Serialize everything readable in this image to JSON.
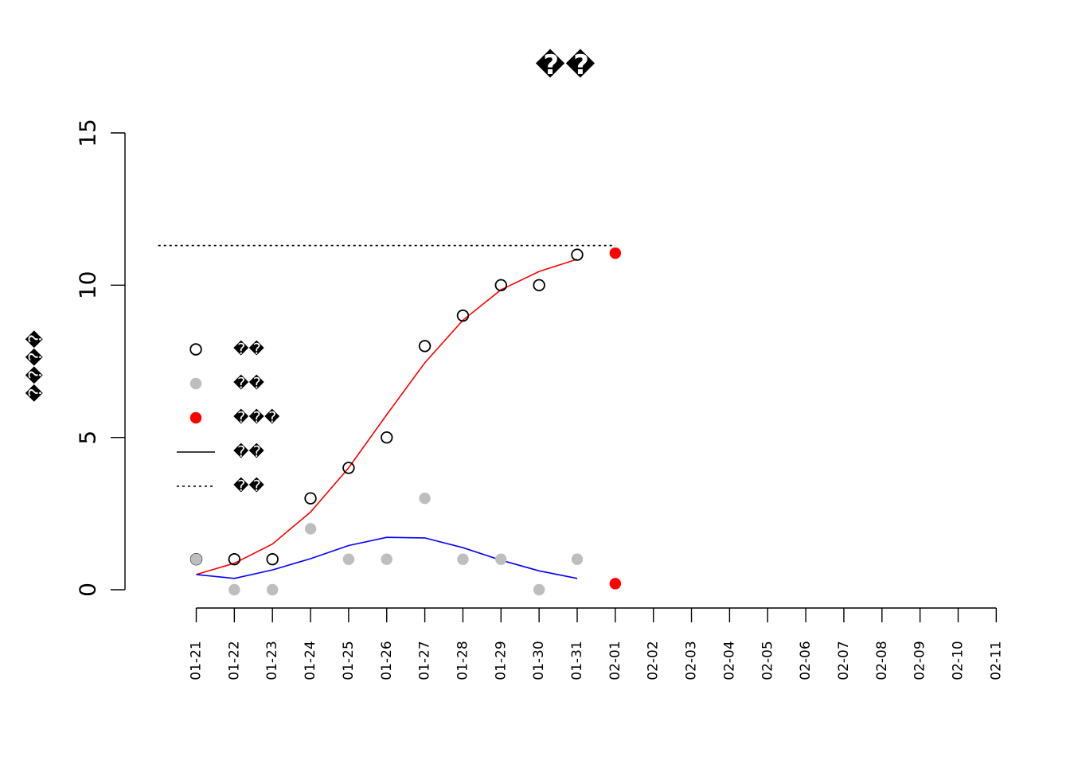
{
  "chart_data": {
    "type": "scatter",
    "title": "��",
    "xlabel": "",
    "ylabel": "����",
    "ylim": [
      0,
      15
    ],
    "yticks": [
      0,
      5,
      10,
      15
    ],
    "x": [
      "01-21",
      "01-22",
      "01-23",
      "01-24",
      "01-25",
      "01-26",
      "01-27",
      "01-28",
      "01-29",
      "01-30",
      "01-31",
      "02-01",
      "02-02",
      "02-03",
      "02-04",
      "02-05",
      "02-06",
      "02-07",
      "02-08",
      "02-09",
      "02-10",
      "02-11"
    ],
    "grid": false,
    "legend_position": "left",
    "series": [
      {
        "name": "��",
        "kind": "points-open",
        "color": "#000000",
        "x": [
          "01-21",
          "01-22",
          "01-23",
          "01-24",
          "01-25",
          "01-26",
          "01-27",
          "01-28",
          "01-29",
          "01-30",
          "01-31"
        ],
        "values": [
          1,
          1,
          1,
          3,
          4,
          5,
          8,
          9,
          10,
          10,
          11
        ]
      },
      {
        "name": "��",
        "kind": "points-filled",
        "color": "#bebebe",
        "x": [
          "01-21",
          "01-22",
          "01-23",
          "01-24",
          "01-25",
          "01-26",
          "01-27",
          "01-28",
          "01-29",
          "01-30",
          "01-31"
        ],
        "values": [
          1,
          0,
          0,
          2,
          1,
          1,
          3,
          1,
          1,
          0,
          1
        ]
      },
      {
        "name": "���",
        "kind": "points-filled",
        "color": "#ff0000",
        "x": [
          "02-01",
          "02-01"
        ],
        "values": [
          11.05,
          0.2
        ]
      },
      {
        "name": "��",
        "kind": "line",
        "color": "#ff0000",
        "x": [
          "01-21",
          "01-22",
          "01-23",
          "01-24",
          "01-25",
          "01-26",
          "01-27",
          "01-28",
          "01-29",
          "01-30",
          "01-31"
        ],
        "values": [
          0.5,
          0.87,
          1.5,
          2.55,
          4.0,
          5.75,
          7.45,
          8.85,
          9.85,
          10.45,
          10.85
        ]
      },
      {
        "name": "",
        "kind": "line",
        "color": "#0000ff",
        "x": [
          "01-21",
          "01-22",
          "01-23",
          "01-24",
          "01-25",
          "01-26",
          "01-27",
          "01-28",
          "01-29",
          "01-30",
          "01-31"
        ],
        "values": [
          0.5,
          0.37,
          0.65,
          1.02,
          1.45,
          1.72,
          1.7,
          1.38,
          0.97,
          0.62,
          0.37
        ]
      },
      {
        "name": "��",
        "kind": "dotted-line",
        "color": "#000000",
        "x": [
          "01-20",
          "02-01"
        ],
        "values": [
          11.3,
          11.3
        ]
      }
    ]
  }
}
